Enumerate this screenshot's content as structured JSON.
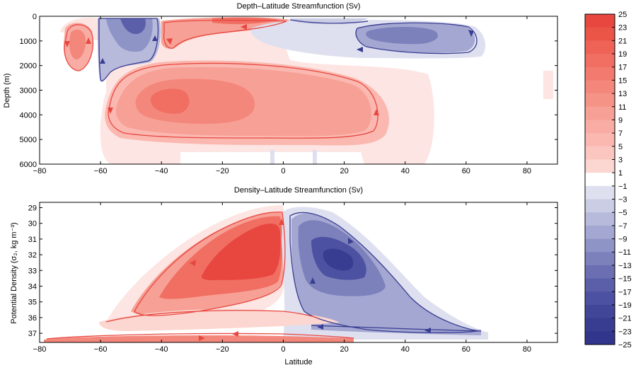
{
  "figure": {
    "colorbar": {
      "ticks": [
        25,
        23,
        21,
        19,
        17,
        15,
        13,
        11,
        9,
        7,
        5,
        3,
        1,
        -1,
        -3,
        -5,
        -7,
        -9,
        -11,
        -13,
        -15,
        -17,
        -19,
        -21,
        -23,
        -25
      ],
      "colors": [
        "#e8473f",
        "#eb5548",
        "#ee6356",
        "#f06e62",
        "#f27a6e",
        "#f4877b",
        "#f59387",
        "#f7a096",
        "#f8aca3",
        "#fab8b0",
        "#fbc6c0",
        "#fcd6d1",
        "#ffffff",
        "#dfe0ef",
        "#cbcde5",
        "#b7badb",
        "#a3a7d1",
        "#8f94c6",
        "#7c81bc",
        "#6b6fb2",
        "#5b5fa9",
        "#4d51a1",
        "#424699",
        "#393d92",
        "#31358c"
      ]
    }
  },
  "chart_data": [
    {
      "type": "heatmap",
      "title": "Depth–Latitude Streamfunction (Sv)",
      "xlabel": "",
      "ylabel": "Depth (m)",
      "xlim": [
        -80,
        90
      ],
      "ylim": [
        6000,
        0
      ],
      "yreversed": true,
      "xticks": [
        "−80",
        "−60",
        "−40",
        "−20",
        "0",
        "20",
        "40",
        "60",
        "80"
      ],
      "yticks": [
        "0",
        "1000",
        "2000",
        "3000",
        "4000",
        "5000",
        "6000"
      ],
      "cells": [
        {
          "lon": -67,
          "depth": 1200,
          "rx": 5,
          "ry": 900,
          "value": 5
        },
        {
          "lon": -48,
          "depth": 800,
          "rx": 9,
          "ry": 1100,
          "value": -13
        },
        {
          "lon": -20,
          "depth": 3600,
          "rx": 38,
          "ry": 1700,
          "value": 11
        },
        {
          "lon": -32,
          "depth": 3500,
          "rx": 10,
          "ry": 600,
          "value": 17
        },
        {
          "lon": -8,
          "depth": 700,
          "rx": 25,
          "ry": 500,
          "value": 9
        },
        {
          "lon": 45,
          "depth": 900,
          "rx": 20,
          "ry": 700,
          "value": -9
        },
        {
          "lon": 42,
          "depth": 700,
          "rx": 10,
          "ry": 300,
          "value": -13
        }
      ]
    },
    {
      "type": "heatmap",
      "title": "Density–Latitude Streamfunction (Sv)",
      "xlabel": "Latitude",
      "ylabel": "Potential Density (σ₂, kg m⁻³)",
      "xlim": [
        -80,
        90
      ],
      "ylim": [
        37.5,
        28.6
      ],
      "yreversed": true,
      "xticks": [
        "−80",
        "−60",
        "−40",
        "−20",
        "0",
        "20",
        "40",
        "60",
        "80"
      ],
      "yticks": [
        "29",
        "30",
        "31",
        "32",
        "33",
        "34",
        "35",
        "36",
        "37"
      ],
      "cells": [
        {
          "lon": -20,
          "density": 33.2,
          "rx": 20,
          "ry": 2.3,
          "value": 13
        },
        {
          "lon": -12,
          "density": 32.5,
          "rx": 10,
          "ry": 1.5,
          "value": 23
        },
        {
          "lon": 28,
          "density": 33.0,
          "rx": 18,
          "ry": 2.5,
          "value": -11
        },
        {
          "lon": 22,
          "density": 32.4,
          "rx": 10,
          "ry": 1.2,
          "value": -19
        },
        {
          "lon": -20,
          "density": 37.3,
          "rx": 50,
          "ry": 0.2,
          "value": 13
        }
      ]
    }
  ]
}
